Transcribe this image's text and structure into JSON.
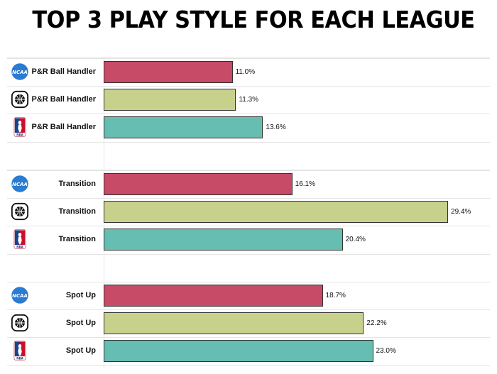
{
  "title": "TOP 3 PLAY STYLE FOR EACH LEAGUE",
  "colors": {
    "NCAA": "#c74a67",
    "FIBA": "#c8d18b",
    "NBA": "#66bdb2"
  },
  "chart_data": {
    "type": "bar",
    "orientation": "horizontal",
    "title": "TOP 3 PLAY STYLE FOR EACH LEAGUE",
    "xlabel": "",
    "ylabel": "",
    "grid": true,
    "legend": "league logos beside each bar (NCAA, FIBA, NBA)",
    "categories": [
      "P&R Ball Handler",
      "Transition",
      "Spot Up"
    ],
    "series": [
      {
        "name": "NCAA",
        "color": "#c74a67",
        "values": [
          11.0,
          16.1,
          18.7
        ]
      },
      {
        "name": "FIBA",
        "color": "#c8d18b",
        "values": [
          11.3,
          29.4,
          22.2
        ]
      },
      {
        "name": "NBA",
        "color": "#66bdb2",
        "values": [
          13.6,
          20.4,
          23.0
        ]
      }
    ],
    "value_labels": [
      [
        "11.0%",
        "11.3%",
        "13.6%"
      ],
      [
        "16.1%",
        "29.4%",
        "20.4%"
      ],
      [
        "18.7%",
        "22.2%",
        "23.0%"
      ]
    ],
    "unit": "%"
  },
  "groups": [
    {
      "name": "P&R Ball Handler",
      "rows": [
        {
          "league": "NCAA",
          "logo": "ncaa-logo",
          "label": "P&R Ball Handler",
          "value": 11.0,
          "value_label": "11.0%"
        },
        {
          "league": "FIBA",
          "logo": "fiba-logo",
          "label": "P&R Ball Handler",
          "value": 11.3,
          "value_label": "11.3%"
        },
        {
          "league": "NBA",
          "logo": "nba-logo",
          "label": "P&R Ball Handler",
          "value": 13.6,
          "value_label": "13.6%"
        }
      ]
    },
    {
      "name": "Transition",
      "rows": [
        {
          "league": "NCAA",
          "logo": "ncaa-logo",
          "label": "Transition",
          "value": 16.1,
          "value_label": "16.1%"
        },
        {
          "league": "FIBA",
          "logo": "fiba-logo",
          "label": "Transition",
          "value": 29.4,
          "value_label": "29.4%"
        },
        {
          "league": "NBA",
          "logo": "nba-logo",
          "label": "Transition",
          "value": 20.4,
          "value_label": "20.4%"
        }
      ]
    },
    {
      "name": "Spot Up",
      "rows": [
        {
          "league": "NCAA",
          "logo": "ncaa-logo",
          "label": "Spot Up",
          "value": 18.7,
          "value_label": "18.7%"
        },
        {
          "league": "FIBA",
          "logo": "fiba-logo",
          "label": "Spot Up",
          "value": 22.2,
          "value_label": "22.2%"
        },
        {
          "league": "NBA",
          "logo": "nba-logo",
          "label": "Spot Up",
          "value": 23.0,
          "value_label": "23.0%"
        }
      ]
    }
  ],
  "logo_text": {
    "ncaa": "NCAA",
    "nba": "NBA"
  }
}
